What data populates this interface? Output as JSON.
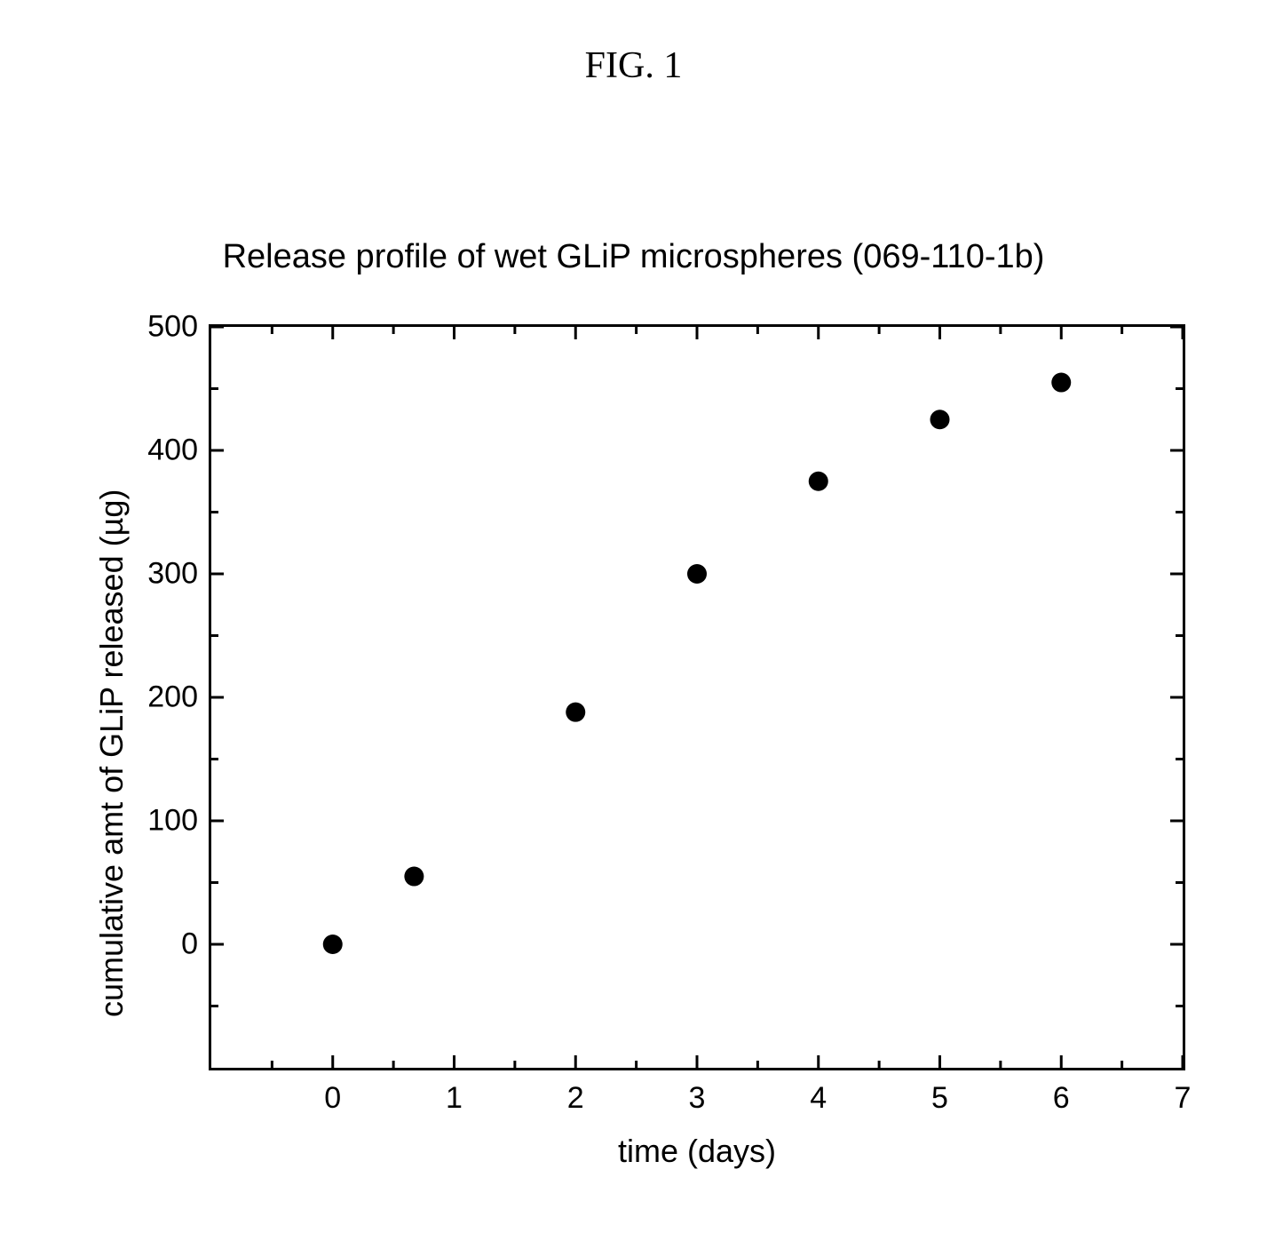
{
  "figure_label": "FIG. 1",
  "chart": {
    "type": "scatter",
    "title": "Release profile of wet GLiP microspheres (069-110-1b)",
    "xlabel": "time (days)",
    "ylabel": "cumulative amt of GLiP released (µg)",
    "xlim": [
      -1,
      7
    ],
    "ylim": [
      -100,
      500
    ],
    "xticks": [
      0,
      1,
      2,
      3,
      4,
      5,
      6,
      7
    ],
    "yticks": [
      0,
      100,
      200,
      300,
      400,
      500
    ],
    "x_values": [
      0,
      0.67,
      2,
      3,
      4,
      5,
      6
    ],
    "y_values": [
      0,
      55,
      188,
      300,
      375,
      425,
      455
    ],
    "marker_color": "#000000",
    "marker_radius": 11,
    "background_color": "#ffffff",
    "axis_color": "#000000",
    "axis_width": 3,
    "tick_length_major": 14,
    "tick_length_minor": 8,
    "tick_fontsize": 34,
    "title_fontsize": 38,
    "label_fontsize": 36
  }
}
